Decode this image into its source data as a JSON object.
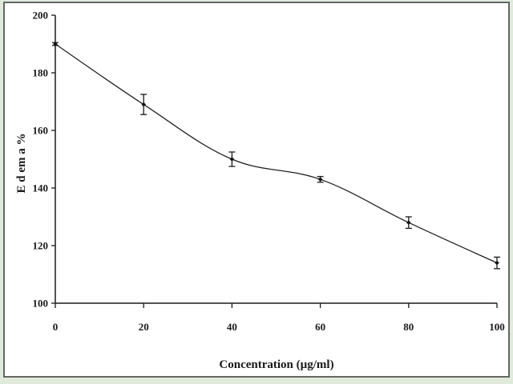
{
  "chart_data": {
    "type": "line",
    "title": "",
    "xlabel": "Concentration (µg/ml)",
    "ylabel": "E d em a %",
    "xlim": [
      0,
      100
    ],
    "ylim": [
      100,
      200
    ],
    "xticks": [
      0,
      20,
      40,
      60,
      80,
      100
    ],
    "yticks": [
      100,
      120,
      140,
      160,
      180,
      200
    ],
    "grid": false,
    "legend": "none",
    "line_color": "#222222",
    "series": [
      {
        "x": [
          0,
          20,
          40,
          60,
          80,
          100
        ],
        "y": [
          190,
          169,
          150,
          143,
          128,
          114
        ],
        "error": [
          0.5,
          3.5,
          2.5,
          1,
          2,
          2
        ]
      }
    ]
  }
}
